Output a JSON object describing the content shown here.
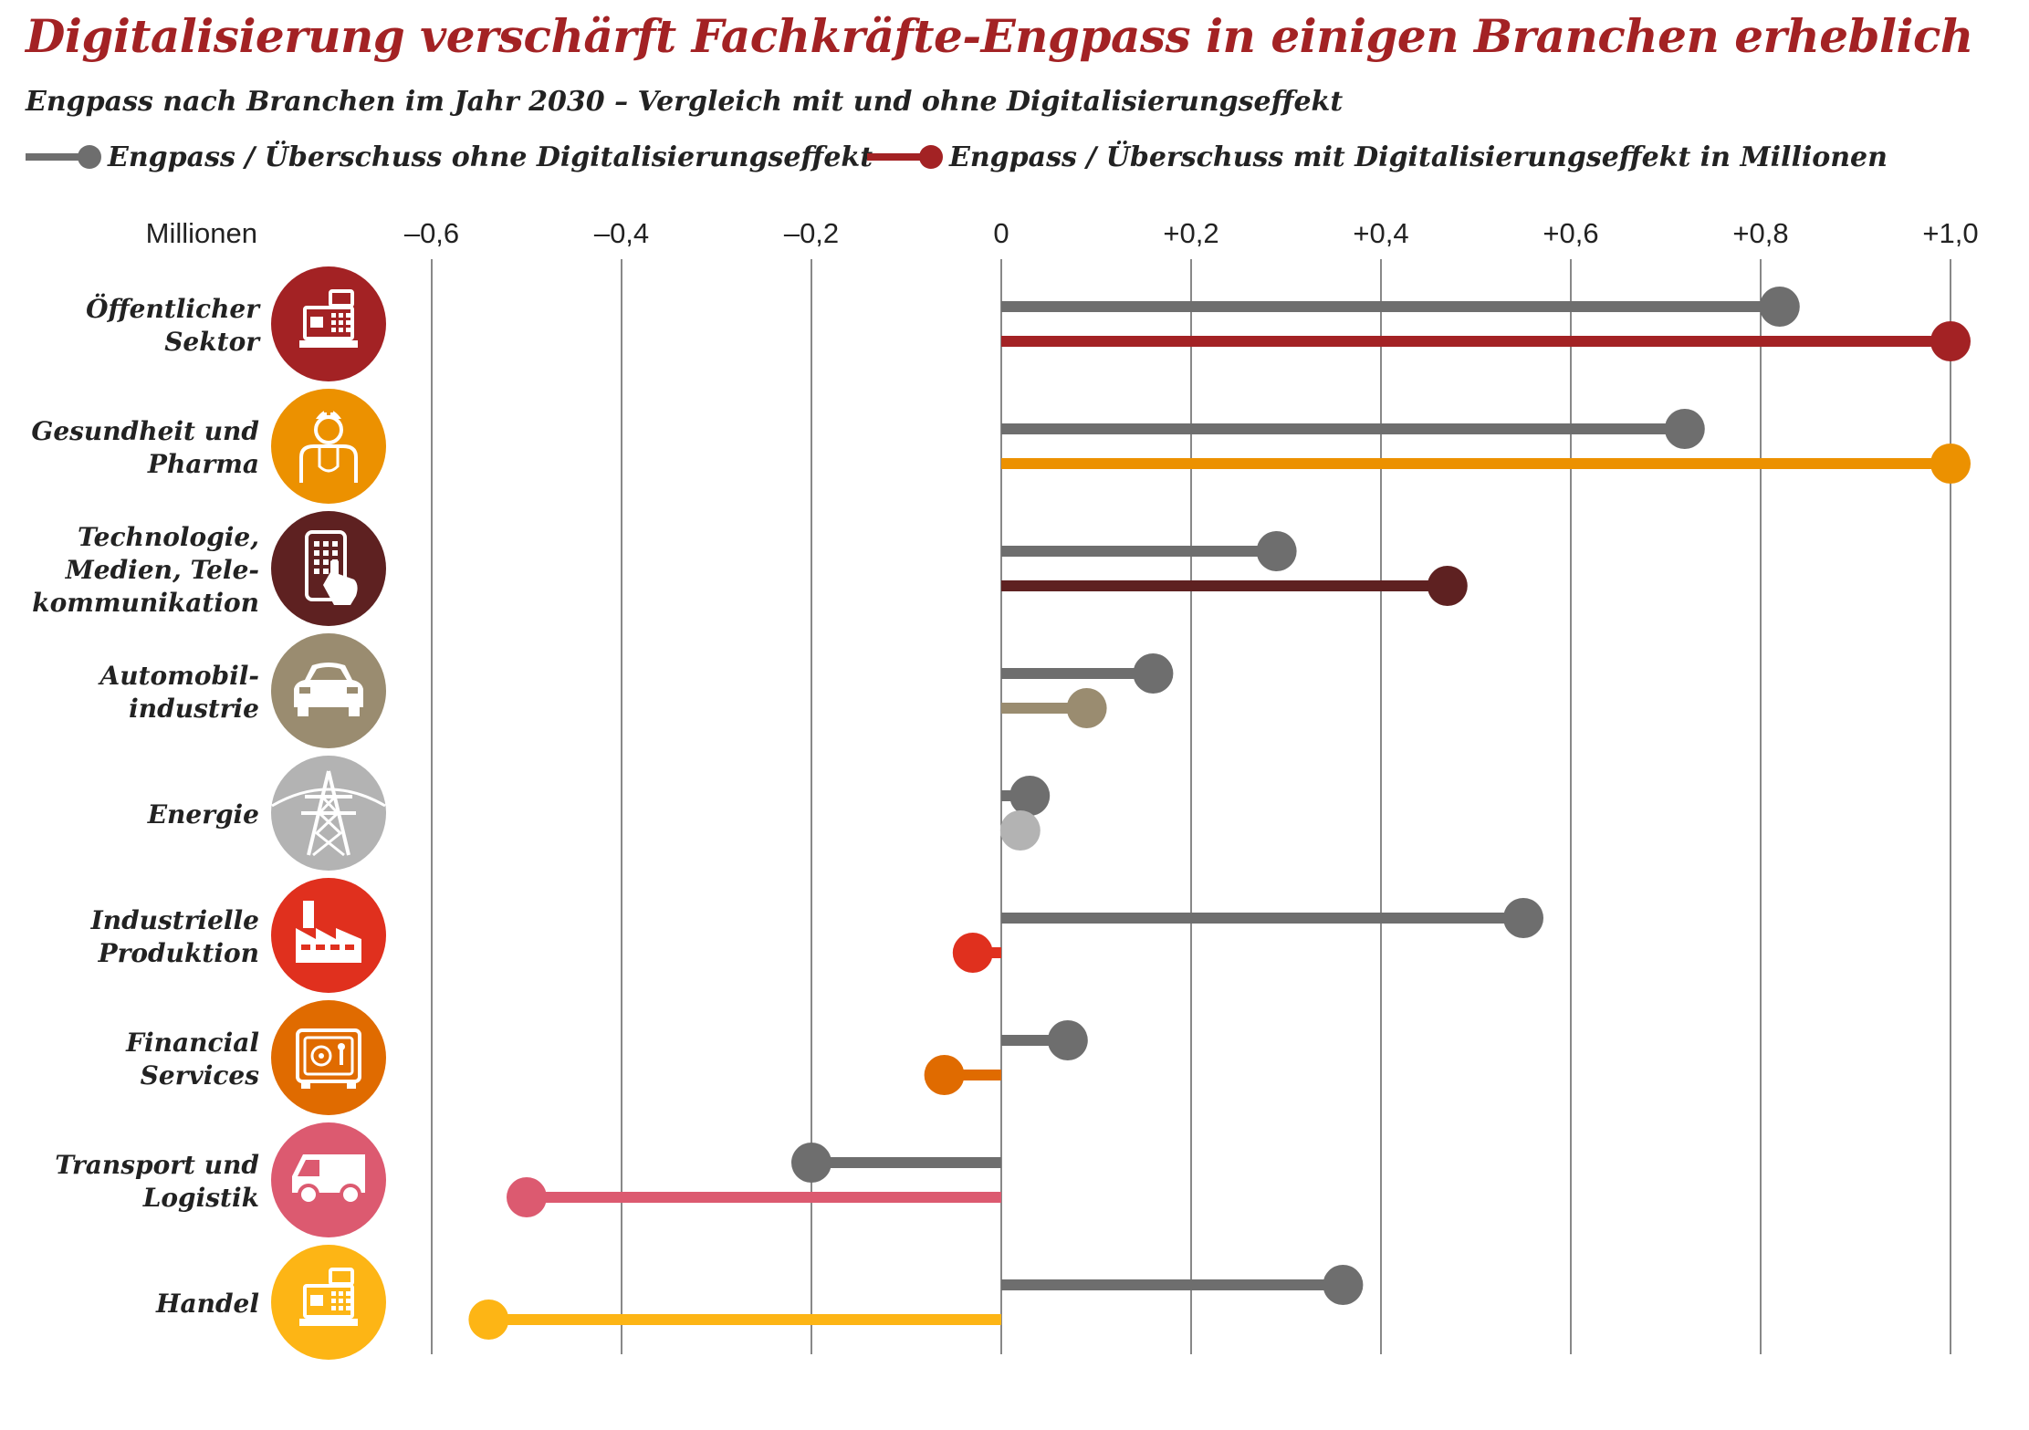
{
  "title": "Digitalisierung verschärft Fachkräfte-Engpass in einigen Branchen erheblich",
  "subtitle": "Engpass nach Branchen im Jahr 2030 – Vergleich mit und ohne Digitalisierungseffekt",
  "legend": [
    {
      "label": "Engpass / Überschuss ohne Digitalisierungseffekt",
      "color": "#6e6e6e"
    },
    {
      "label": "Engpass / Überschuss mit Digitalisierungseffekt in Millionen",
      "color": "#a32224"
    }
  ],
  "chart_data": {
    "type": "lollipop",
    "title": "Digitalisierung verschärft Fachkräfte-Engpass in einigen Branchen erheblich",
    "subtitle": "Engpass nach Branchen im Jahr 2030 – Vergleich mit und ohne Digitalisierungseffekt",
    "axis_unit_label": "Millionen",
    "xlim": [
      -0.6,
      1.0
    ],
    "x_ticks": [
      -0.6,
      -0.4,
      -0.2,
      0,
      0.2,
      0.4,
      0.6,
      0.8,
      1.0
    ],
    "x_tick_labels": [
      "–0,6",
      "–0,4",
      "–0,2",
      "0",
      "+0,2",
      "+0,4",
      "+0,6",
      "+0,8",
      "+1,0"
    ],
    "grid": true,
    "legend_position": "top",
    "categories": [
      {
        "label": [
          "Öffentlicher",
          "Sektor"
        ],
        "icon": "cash-register-icon",
        "color": "#a32224",
        "ohne": 0.82,
        "mit": 1.0
      },
      {
        "label": [
          "Gesundheit und",
          "Pharma"
        ],
        "icon": "doctor-icon",
        "color": "#ec9100",
        "ohne": 0.72,
        "mit": 1.0
      },
      {
        "label": [
          "Technologie,",
          "Medien, Tele-",
          "kommunikation"
        ],
        "icon": "smartphone-touch-icon",
        "color": "#5e2121",
        "ohne": 0.29,
        "mit": 0.47
      },
      {
        "label": [
          "Automobil-",
          "industrie"
        ],
        "icon": "car-icon",
        "color": "#9a8c70",
        "ohne": 0.16,
        "mit": 0.09
      },
      {
        "label": [
          "Energie"
        ],
        "icon": "power-pylon-icon",
        "color": "#b3b3b3",
        "ohne": 0.03,
        "mit": 0.02
      },
      {
        "label": [
          "Industrielle",
          "Produktion"
        ],
        "icon": "factory-icon",
        "color": "#e0301e",
        "ohne": 0.55,
        "mit": -0.03
      },
      {
        "label": [
          "Financial",
          "Services"
        ],
        "icon": "safe-icon",
        "color": "#e06b00",
        "ohne": 0.07,
        "mit": -0.06
      },
      {
        "label": [
          "Transport und",
          "Logistik"
        ],
        "icon": "delivery-van-icon",
        "color": "#dc5a70",
        "ohne": -0.2,
        "mit": -0.5
      },
      {
        "label": [
          "Handel"
        ],
        "icon": "cash-register-icon",
        "color": "#fdb515",
        "ohne": 0.36,
        "mit": -0.54
      }
    ]
  }
}
